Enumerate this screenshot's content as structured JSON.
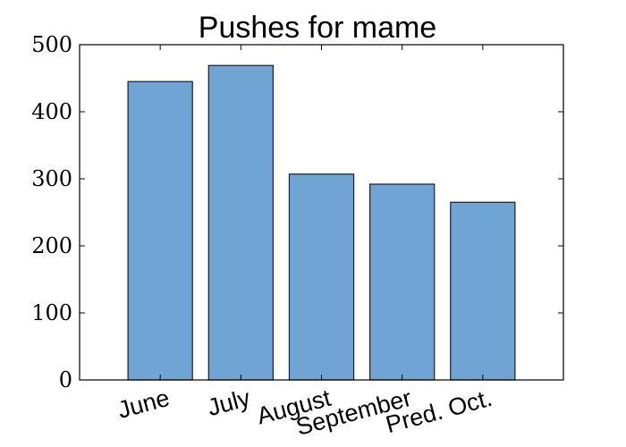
{
  "chart_data": {
    "type": "bar",
    "title": "Pushes for mame",
    "categories": [
      "June",
      "July",
      "August",
      "September",
      "Pred. Oct."
    ],
    "values": [
      445,
      469,
      307,
      292,
      265
    ],
    "xlabel": "",
    "ylabel": "",
    "ylim": [
      0,
      500
    ],
    "yticks": [
      0,
      100,
      200,
      300,
      400,
      500
    ],
    "grid": false,
    "bar_color": "#6fa4d4"
  }
}
